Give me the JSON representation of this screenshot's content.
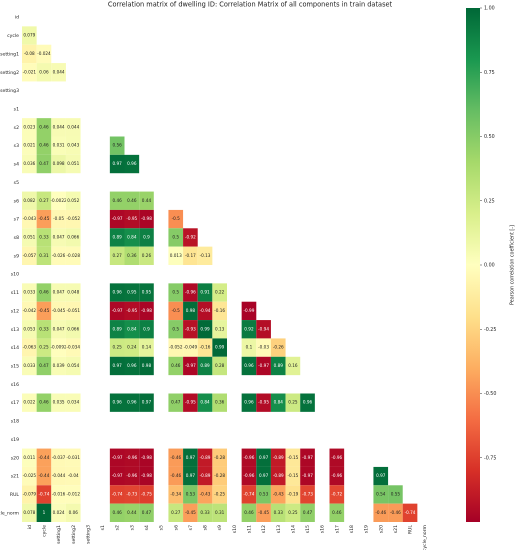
{
  "chart_data": {
    "type": "heatmap",
    "title": "Correlation matrix of dwelling ID: Correlation Matrix of all components in train dataset",
    "colorbar_label": "Pearson correlation coefficient [-]",
    "labels": [
      "id",
      "cycle",
      "setting1",
      "setting2",
      "setting3",
      "s1",
      "s2",
      "s3",
      "s4",
      "s5",
      "s6",
      "s7",
      "s8",
      "s9",
      "s10",
      "s11",
      "s12",
      "s13",
      "s14",
      "s15",
      "s16",
      "s17",
      "s18",
      "s19",
      "s20",
      "s21",
      "RUL",
      "cycle_norm"
    ],
    "values": [
      [],
      [
        0.079
      ],
      [
        -0.08,
        -0.024
      ],
      [
        -0.021,
        0.06,
        0.044
      ],
      [
        null,
        null,
        null,
        null
      ],
      [
        null,
        null,
        null,
        null,
        null
      ],
      [
        0.023,
        0.46,
        0.044,
        0.044,
        null,
        null
      ],
      [
        0.021,
        0.46,
        0.031,
        0.043,
        null,
        null,
        0.56
      ],
      [
        0.036,
        0.47,
        0.098,
        0.051,
        null,
        null,
        0.97,
        0.96
      ],
      [
        null,
        null,
        null,
        null,
        null,
        null,
        null,
        null,
        null
      ],
      [
        0.082,
        0.27,
        -0.0022,
        0.052,
        null,
        null,
        0.46,
        0.46,
        0.44,
        null
      ],
      [
        -0.043,
        -0.45,
        -0.05,
        -0.052,
        null,
        null,
        -0.97,
        -0.95,
        -0.98,
        null,
        -0.5
      ],
      [
        0.051,
        0.33,
        0.047,
        0.066,
        null,
        null,
        0.89,
        0.84,
        0.9,
        null,
        0.5,
        -0.92
      ],
      [
        -0.057,
        0.31,
        -0.026,
        -0.028,
        null,
        null,
        0.27,
        0.36,
        0.26,
        null,
        0.013,
        -0.17,
        -0.13
      ],
      [
        null,
        null,
        null,
        null,
        null,
        null,
        null,
        null,
        null,
        null,
        null,
        null,
        null,
        null
      ],
      [
        0.033,
        0.46,
        0.047,
        0.048,
        null,
        null,
        0.96,
        0.95,
        0.95,
        null,
        0.5,
        -0.96,
        0.91,
        0.22,
        null
      ],
      [
        -0.042,
        -0.45,
        -0.045,
        -0.051,
        null,
        null,
        -0.97,
        -0.95,
        -0.98,
        null,
        -0.5,
        0.98,
        -0.94,
        -0.16,
        null,
        -0.99
      ],
      [
        0.053,
        0.33,
        0.047,
        0.066,
        null,
        null,
        0.89,
        0.84,
        0.9,
        null,
        0.5,
        -0.93,
        0.99,
        0.13,
        null,
        0.92,
        -0.94
      ],
      [
        -0.063,
        0.25,
        -0.0092,
        -0.034,
        null,
        null,
        0.25,
        0.24,
        0.14,
        null,
        -0.052,
        -0.049,
        -0.16,
        0.99,
        null,
        0.1,
        -0.03,
        -0.26
      ],
      [
        0.033,
        0.47,
        0.039,
        0.054,
        null,
        null,
        0.97,
        0.96,
        0.98,
        null,
        0.46,
        -0.97,
        0.89,
        0.28,
        null,
        0.96,
        -0.97,
        0.89,
        0.16
      ],
      [
        null,
        null,
        null,
        null,
        null,
        null,
        null,
        null,
        null,
        null,
        null,
        null,
        null,
        null,
        null,
        null,
        null,
        null,
        null,
        null
      ],
      [
        0.022,
        0.46,
        0.035,
        0.034,
        null,
        null,
        0.96,
        0.96,
        0.97,
        null,
        0.47,
        -0.95,
        0.84,
        0.36,
        null,
        0.96,
        -0.95,
        0.84,
        0.25,
        0.96,
        null
      ],
      [
        null,
        null,
        null,
        null,
        null,
        null,
        null,
        null,
        null,
        null,
        null,
        null,
        null,
        null,
        null,
        null,
        null,
        null,
        null,
        null,
        null,
        null
      ],
      [
        null,
        null,
        null,
        null,
        null,
        null,
        null,
        null,
        null,
        null,
        null,
        null,
        null,
        null,
        null,
        null,
        null,
        null,
        null,
        null,
        null,
        null,
        null
      ],
      [
        0.011,
        -0.44,
        -0.037,
        -0.031,
        null,
        null,
        -0.97,
        -0.96,
        -0.98,
        null,
        -0.46,
        0.97,
        -0.89,
        -0.28,
        null,
        -0.96,
        0.97,
        -0.89,
        -0.15,
        -0.97,
        null,
        -0.96,
        null,
        null
      ],
      [
        -0.025,
        -0.44,
        -0.044,
        -0.04,
        null,
        null,
        -0.97,
        -0.96,
        -0.98,
        null,
        -0.46,
        0.97,
        -0.89,
        -0.28,
        null,
        -0.96,
        0.97,
        -0.89,
        -0.15,
        -0.97,
        null,
        -0.96,
        null,
        null,
        0.97
      ],
      [
        -0.079,
        -0.74,
        -0.016,
        -0.012,
        null,
        null,
        -0.74,
        -0.73,
        -0.75,
        null,
        -0.34,
        0.53,
        -0.43,
        -0.25,
        null,
        -0.74,
        0.53,
        -0.43,
        -0.19,
        -0.73,
        null,
        -0.72,
        null,
        null,
        0.54,
        0.55
      ],
      [
        0.078,
        1,
        0.024,
        0.06,
        null,
        null,
        0.46,
        0.44,
        0.47,
        null,
        0.27,
        -0.45,
        0.33,
        0.31,
        null,
        0.46,
        -0.45,
        0.33,
        0.25,
        0.47,
        null,
        0.46,
        null,
        null,
        -0.46,
        -0.46,
        -0.74
      ]
    ],
    "clim": [
      -1,
      1
    ],
    "colors": [
      "#a50026",
      "#d73027",
      "#f46d43",
      "#fdae61",
      "#fee08b",
      "#ffffbf",
      "#d9ef8b",
      "#a6d96a",
      "#66bd63",
      "#1a9850",
      "#006837"
    ],
    "cticks": [
      {
        "value": 1,
        "label": "1.00"
      },
      {
        "value": 0.75,
        "label": "0.75"
      },
      {
        "value": 0.5,
        "label": "0.50"
      },
      {
        "value": 0.25,
        "label": "0.25"
      },
      {
        "value": 0,
        "label": "0.00"
      },
      {
        "value": -0.25,
        "label": "-0.25"
      },
      {
        "value": -0.5,
        "label": "-0.50"
      },
      {
        "value": -0.75,
        "label": "-0.75"
      }
    ]
  }
}
